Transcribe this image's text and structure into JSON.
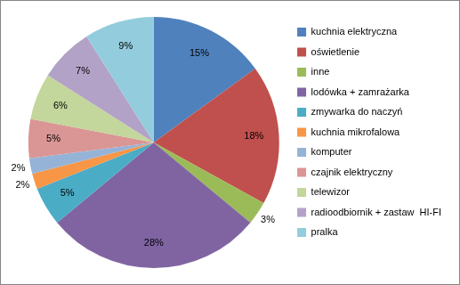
{
  "chart_data": {
    "type": "pie",
    "categories": [
      "kuchnia elektryczna",
      "oświetlenie",
      "inne",
      "lodówka + zamrażarka",
      "zmywarka do naczyń",
      "kuchnia mikrofalowa",
      "komputer",
      "czajnik elektryczny",
      "telewizor",
      "radioodbiornik + zastaw  HI-FI",
      "pralka"
    ],
    "values": [
      15,
      18,
      3,
      28,
      5,
      2,
      2,
      5,
      6,
      7,
      9
    ],
    "value_labels": [
      "15%",
      "18%",
      "3%",
      "28%",
      "5%",
      "2%",
      "2%",
      "5%",
      "6%",
      "7%",
      "9%"
    ],
    "colors": [
      "#4f81bd",
      "#c0504d",
      "#9bbb59",
      "#8064a2",
      "#4bacc6",
      "#f79646",
      "#95b3d7",
      "#d99694",
      "#c3d69b",
      "#b3a2c7",
      "#93cddd"
    ],
    "data_labels": true,
    "legend": "right"
  }
}
